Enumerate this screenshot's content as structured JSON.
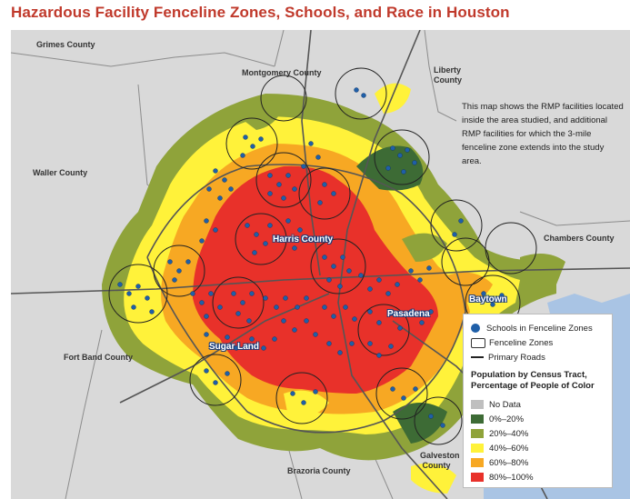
{
  "title": "Hazardous Facility Fenceline Zones, Schools, and Race in Houston",
  "counties": {
    "grimes": "Grimes County",
    "montgomery": "Montgomery County",
    "liberty": "Liberty County",
    "waller": "Waller County",
    "chambers": "Chambers County",
    "fortbend": "Fort Band County",
    "brazoria": "Brazoria County",
    "galveston": "Galveston County"
  },
  "cities": {
    "harris": "Harris County",
    "baytown": "Baytown",
    "pasadena": "Pasadena",
    "sugarland": "Sugar Land"
  },
  "note": "This map shows the RMP facilities located inside the area studied, and additional RMP facilities for which the 3-mile fenceline zone extends into the study area.",
  "legend": {
    "schools": "Schools in Fenceline Zones",
    "zones": "Fenceline Zones",
    "roads": "Primary Roads",
    "heading": "Population by Census Tract, Percentage of People of Color",
    "classes": [
      {
        "label": "No Data",
        "color": "#bfbfbf"
      },
      {
        "label": "0%–20%",
        "color": "#3d6b35"
      },
      {
        "label": "20%–40%",
        "color": "#8fa33a"
      },
      {
        "label": "40%–60%",
        "color": "#fff23a"
      },
      {
        "label": "60%–80%",
        "color": "#f7a823"
      },
      {
        "label": "80%–100%",
        "color": "#e8312a"
      }
    ]
  },
  "colors": {
    "school_dot": "#1f5fa8",
    "background": "#d9d9d9",
    "water": "#a9c4e4",
    "title": "#c0392b"
  }
}
